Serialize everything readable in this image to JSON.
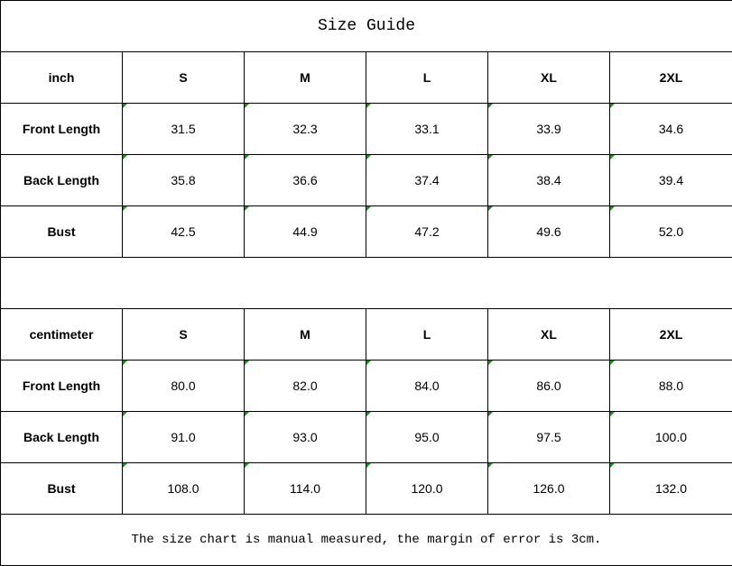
{
  "title": "Size Guide",
  "inch_table": {
    "unit": "inch",
    "sizes": [
      "S",
      "M",
      "L",
      "XL",
      "2XL"
    ],
    "rows": [
      {
        "label": "Front Length",
        "values": [
          "31.5",
          "32.3",
          "33.1",
          "33.9",
          "34.6"
        ]
      },
      {
        "label": "Back Length",
        "values": [
          "35.8",
          "36.6",
          "37.4",
          "38.4",
          "39.4"
        ]
      },
      {
        "label": "Bust",
        "values": [
          "42.5",
          "44.9",
          "47.2",
          "49.6",
          "52.0"
        ]
      }
    ]
  },
  "cm_table": {
    "unit": "centimeter",
    "sizes": [
      "S",
      "M",
      "L",
      "XL",
      "2XL"
    ],
    "rows": [
      {
        "label": "Front Length",
        "values": [
          "80.0",
          "82.0",
          "84.0",
          "86.0",
          "88.0"
        ]
      },
      {
        "label": "Back Length",
        "values": [
          "91.0",
          "93.0",
          "95.0",
          "97.5",
          "100.0"
        ]
      },
      {
        "label": "Bust",
        "values": [
          "108.0",
          "114.0",
          "120.0",
          "126.0",
          "132.0"
        ]
      }
    ]
  },
  "note": "The size chart is manual measured, the margin of error is 3cm.",
  "colors": {
    "error_indicator": "#1f8a1f",
    "border": "#000000"
  }
}
